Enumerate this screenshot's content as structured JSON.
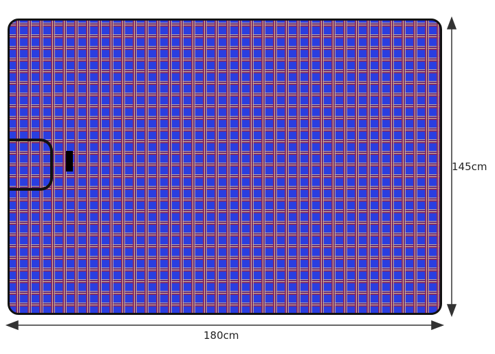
{
  "product": {
    "pattern": "blue plaid",
    "colors": {
      "base": "#2a3ee0",
      "stripe_red": "#8c285a",
      "stripe_cream": "#e6c88c",
      "border": "#111111"
    }
  },
  "dimensions": {
    "width_label": "180cm",
    "height_label": "145cm"
  }
}
